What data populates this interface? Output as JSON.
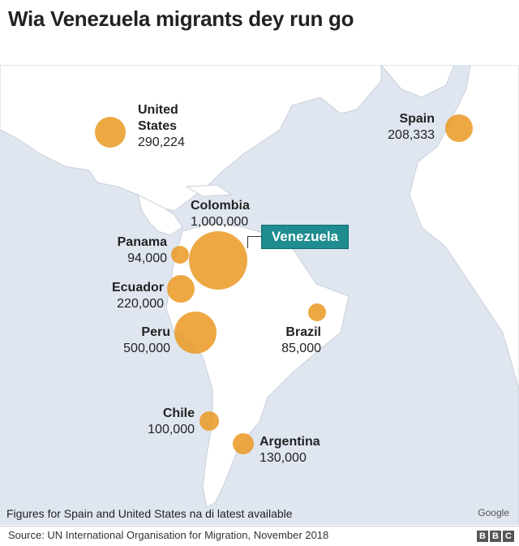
{
  "title": "Wia Venezuela migrants dey run go",
  "colors": {
    "bubble": "#ea9923",
    "sea": "#dfe6f0",
    "land": "#ffffff",
    "highlight": "#1f8c8f"
  },
  "highlight_label": "Venezuela",
  "countries": [
    {
      "name": "United States",
      "name_lines": [
        "United",
        "States"
      ],
      "value": "290,224"
    },
    {
      "name": "Spain",
      "value": "208,333"
    },
    {
      "name": "Colombia",
      "value": "1,000,000"
    },
    {
      "name": "Panama",
      "value": "94,000"
    },
    {
      "name": "Ecuador",
      "value": "220,000"
    },
    {
      "name": "Peru",
      "value": "500,000"
    },
    {
      "name": "Brazil",
      "value": "85,000"
    },
    {
      "name": "Chile",
      "value": "100,000"
    },
    {
      "name": "Argentina",
      "value": "130,000"
    }
  ],
  "note": "Figures for Spain and United States na di latest available",
  "map_credit": "Google",
  "source": "Source: UN International Organisation for Migration, November 2018",
  "logo": [
    "B",
    "B",
    "C"
  ]
}
